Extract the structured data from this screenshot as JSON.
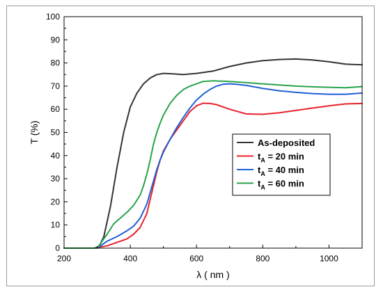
{
  "chart_data": {
    "type": "line",
    "title": "",
    "xlabel": "λ ( nm )",
    "ylabel": "T (%)",
    "xlim": [
      200,
      1100
    ],
    "ylim": [
      0,
      100
    ],
    "xticks": [
      200,
      400,
      600,
      800,
      1000
    ],
    "yticks": [
      0,
      10,
      20,
      30,
      40,
      50,
      60,
      70,
      80,
      90,
      100
    ],
    "grid": false,
    "legend_placement": "center-right",
    "series": [
      {
        "name": "As-deposited",
        "legend": {
          "main": "As-deposited",
          "sub": "",
          "tail": ""
        },
        "color": "#333333",
        "x": [
          200,
          290,
          305,
          320,
          340,
          360,
          380,
          400,
          420,
          440,
          460,
          480,
          500,
          530,
          560,
          600,
          650,
          700,
          750,
          800,
          850,
          900,
          950,
          1000,
          1050,
          1100
        ],
        "y": [
          0,
          0,
          0.5,
          5,
          18,
          35,
          50,
          61,
          67,
          71,
          73.5,
          75,
          75.5,
          75.3,
          75,
          75.5,
          76.5,
          78.5,
          80,
          81,
          81.5,
          81.7,
          81.3,
          80.5,
          79.5,
          79.2
        ]
      },
      {
        "name": "tA = 20 min",
        "legend": {
          "main": "t",
          "sub": "A",
          "tail": " = 20 min"
        },
        "color": "#e8212c",
        "x": [
          200,
          300,
          310,
          330,
          360,
          390,
          410,
          430,
          450,
          460,
          470,
          480,
          490,
          500,
          520,
          540,
          560,
          580,
          600,
          620,
          640,
          660,
          700,
          750,
          800,
          850,
          900,
          950,
          1000,
          1050,
          1100
        ],
        "y": [
          0,
          0,
          0.5,
          1,
          2.5,
          4,
          6,
          9,
          15,
          21,
          27,
          33,
          38,
          42,
          47,
          51,
          55,
          59,
          61.5,
          62.6,
          62.5,
          62,
          60,
          58,
          57.8,
          58.5,
          59.5,
          60.5,
          61.5,
          62.3,
          62.5
        ]
      },
      {
        "name": "tA = 40 min",
        "legend": {
          "main": "t",
          "sub": "A",
          "tail": " = 40 min"
        },
        "color": "#1f5fd6",
        "x": [
          200,
          300,
          310,
          330,
          360,
          390,
          410,
          430,
          450,
          460,
          470,
          480,
          490,
          500,
          520,
          540,
          560,
          580,
          600,
          620,
          640,
          660,
          680,
          700,
          720,
          750,
          800,
          850,
          900,
          950,
          1000,
          1050,
          1100
        ],
        "y": [
          0,
          0,
          1,
          3,
          5,
          7.5,
          9.5,
          13,
          19,
          24,
          29,
          34,
          38,
          41.5,
          47,
          52,
          56.5,
          60.5,
          64,
          66.5,
          68.5,
          70,
          70.8,
          71,
          70.8,
          70.3,
          69,
          68,
          67.3,
          66.8,
          66.5,
          66.5,
          67
        ]
      },
      {
        "name": "tA = 60 min",
        "legend": {
          "main": "t",
          "sub": "A",
          "tail": " = 60 min"
        },
        "color": "#27a34a",
        "x": [
          200,
          300,
          310,
          330,
          350,
          370,
          390,
          410,
          430,
          440,
          450,
          460,
          470,
          480,
          490,
          500,
          520,
          540,
          560,
          580,
          600,
          620,
          650,
          700,
          750,
          800,
          850,
          900,
          950,
          1000,
          1050,
          1100
        ],
        "y": [
          0,
          0,
          2,
          6,
          10.5,
          13,
          15.5,
          18.5,
          23,
          27,
          32,
          38,
          45,
          50,
          54,
          57.5,
          62.5,
          66,
          68.5,
          70,
          71,
          72,
          72.3,
          72,
          71.5,
          71,
          70.5,
          70,
          69.7,
          69.5,
          69.3,
          69.8
        ]
      }
    ]
  }
}
